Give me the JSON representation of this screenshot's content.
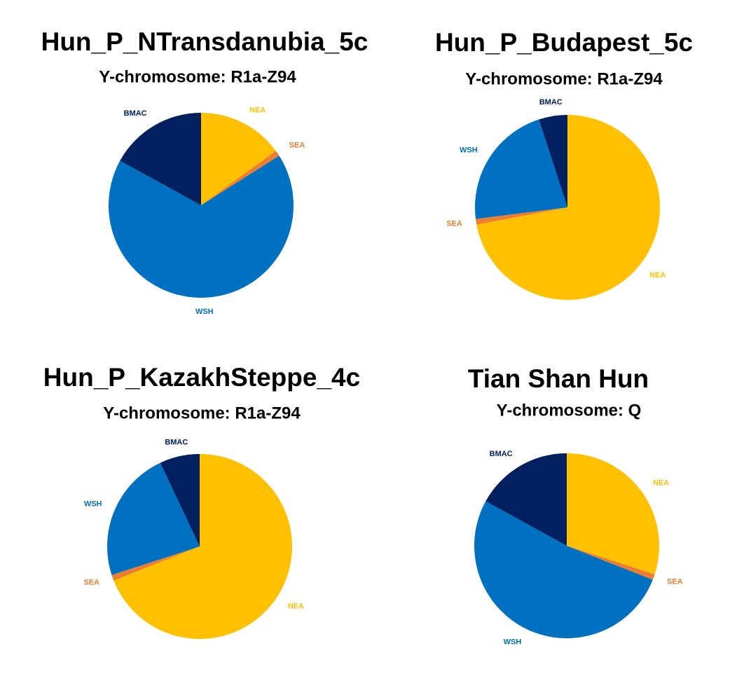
{
  "chart_data": [
    {
      "type": "pie",
      "title": "Hun_P_NTransdanubia_5c",
      "subtitle": "Y-chromosome: R1a-Z94",
      "categories": [
        "NEA",
        "SEA",
        "WSH",
        "BMAC"
      ],
      "values": [
        15,
        1,
        67,
        17
      ],
      "colors": [
        "#ffc000",
        "#ed7d31",
        "#0070c0",
        "#002060"
      ]
    },
    {
      "type": "pie",
      "title": "Hun_P_Budapest_5c",
      "subtitle": "Y-chromosome: R1a-Z94",
      "categories": [
        "NEA",
        "SEA",
        "WSH",
        "BMAC"
      ],
      "values": [
        72,
        1,
        22,
        5
      ],
      "colors": [
        "#ffc000",
        "#ed7d31",
        "#0070c0",
        "#002060"
      ]
    },
    {
      "type": "pie",
      "title": "Hun_P_KazakhSteppe_4c",
      "subtitle": "Y-chromosome: R1a-Z94",
      "categories": [
        "NEA",
        "SEA",
        "WSH",
        "BMAC"
      ],
      "values": [
        69,
        1,
        23,
        7
      ],
      "colors": [
        "#ffc000",
        "#ed7d31",
        "#0070c0",
        "#002060"
      ]
    },
    {
      "type": "pie",
      "title": "Tian Shan Hun",
      "subtitle": "Y-chromosome: Q",
      "categories": [
        "NEA",
        "SEA",
        "WSH",
        "BMAC"
      ],
      "values": [
        30,
        1,
        52,
        17
      ],
      "colors": [
        "#ffc000",
        "#ed7d31",
        "#0070c0",
        "#002060"
      ]
    }
  ]
}
